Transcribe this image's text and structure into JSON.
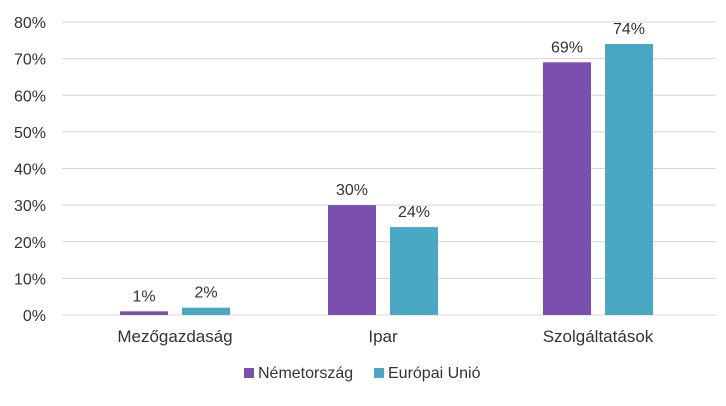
{
  "chart_data": {
    "type": "bar",
    "title": "",
    "xlabel": "",
    "ylabel": "",
    "categories": [
      "Mezőgazdaság",
      "Ipar",
      "Szolgáltatások"
    ],
    "y_tick_labels": [
      "0%",
      "10%",
      "20%",
      "30%",
      "40%",
      "50%",
      "60%",
      "70%",
      "80%"
    ],
    "series": [
      {
        "name": "Németország",
        "color": "#7b4fb0",
        "values": [
          1,
          30,
          69
        ],
        "data_labels": [
          "1%",
          "30%",
          "69%"
        ]
      },
      {
        "name": "Európai Unió",
        "color": "#4aa8c4",
        "values": [
          2,
          24,
          74
        ],
        "data_labels": [
          "2%",
          "24%",
          "74%"
        ]
      }
    ],
    "bar_heights_in_axis_units": [
      [
        1,
        30,
        69
      ],
      [
        2,
        24,
        74
      ]
    ],
    "ylim": [
      0,
      80
    ],
    "grid": true,
    "legend_position": "bottom"
  }
}
